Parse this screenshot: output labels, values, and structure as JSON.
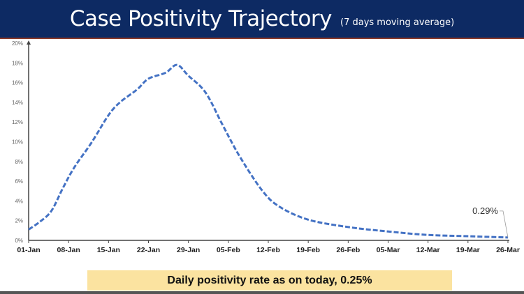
{
  "header": {
    "title": "Case Positivity Trajectory",
    "subtitle": "(7 days moving average)",
    "background_color": "#0d2a63"
  },
  "footer_note": {
    "text": "Daily positivity rate as on today, 0.25%",
    "background_color": "#fbe3a0"
  },
  "chart_data": {
    "type": "line",
    "title": "Case Positivity Trajectory",
    "subtitle": "(7 days moving average)",
    "xlabel": "",
    "ylabel": "",
    "x_ticks": [
      "01-Jan",
      "08-Jan",
      "15-Jan",
      "22-Jan",
      "29-Jan",
      "05-Feb",
      "12-Feb",
      "19-Feb",
      "26-Feb",
      "05-Mar",
      "12-Mar",
      "19-Mar",
      "26-Mar"
    ],
    "y_ticks": [
      "0%",
      "2%",
      "4%",
      "6%",
      "8%",
      "10%",
      "12%",
      "14%",
      "16%",
      "18%",
      "20%"
    ],
    "ylim": [
      0,
      20
    ],
    "xlim": [
      "01-Jan",
      "26-Mar"
    ],
    "grid": false,
    "line_style": "dashed",
    "series": [
      {
        "color": "#4472c4",
        "x": [
          "01-Jan",
          "03-Jan",
          "05-Jan",
          "07-Jan",
          "09-Jan",
          "12-Jan",
          "15-Jan",
          "17-Jan",
          "20-Jan",
          "22-Jan",
          "25-Jan",
          "27-Jan",
          "29-Jan",
          "01-Feb",
          "04-Feb",
          "07-Feb",
          "11-Feb",
          "14-Feb",
          "19-Feb",
          "26-Feb",
          "05-Mar",
          "12-Mar",
          "19-Mar",
          "26-Mar"
        ],
        "y": [
          1.1,
          1.9,
          3.0,
          5.3,
          7.4,
          9.9,
          12.7,
          14.0,
          15.3,
          16.4,
          17.0,
          17.8,
          16.7,
          15.0,
          11.7,
          8.5,
          5.0,
          3.4,
          2.1,
          1.35,
          0.9,
          0.55,
          0.42,
          0.29
        ]
      }
    ],
    "annotations": [
      {
        "text": "0.29%",
        "x": "26-Mar",
        "y": 0.29
      }
    ]
  }
}
